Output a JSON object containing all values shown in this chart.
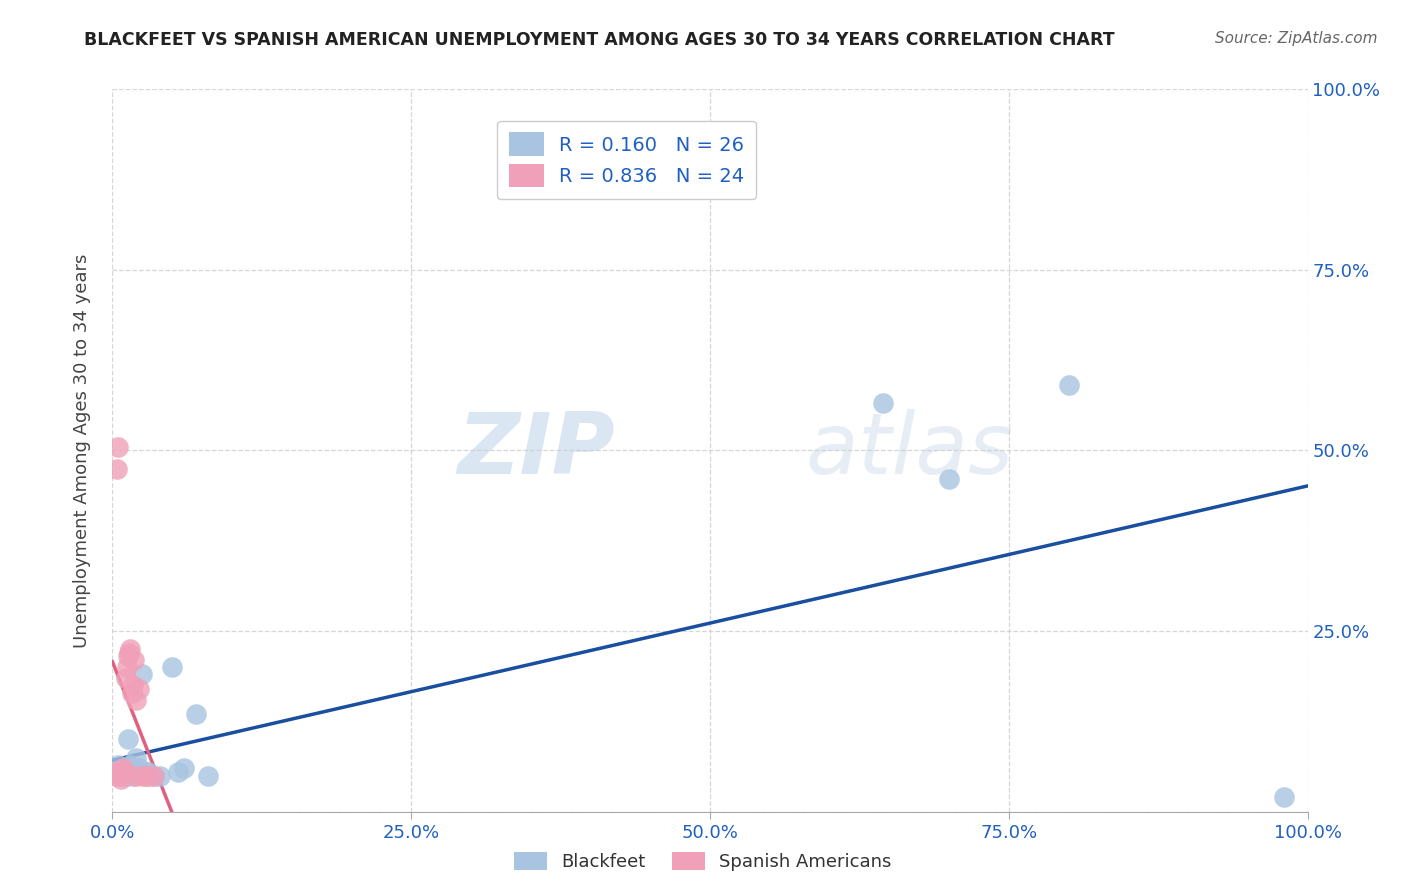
{
  "title": "BLACKFEET VS SPANISH AMERICAN UNEMPLOYMENT AMONG AGES 30 TO 34 YEARS CORRELATION CHART",
  "source": "Source: ZipAtlas.com",
  "ylabel_label": "Unemployment Among Ages 30 to 34 years",
  "blackfeet_color": "#a8c4e0",
  "spanish_color": "#f0a0b8",
  "blue_line_color": "#1a4fa0",
  "pink_line_color": "#e06080",
  "R_blackfeet": 0.16,
  "N_blackfeet": 26,
  "R_spanish": 0.836,
  "N_spanish": 24,
  "blackfeet_x": [
    0.003,
    0.005,
    0.007,
    0.008,
    0.01,
    0.012,
    0.013,
    0.015,
    0.017,
    0.018,
    0.02,
    0.022,
    0.025,
    0.028,
    0.03,
    0.035,
    0.04,
    0.05,
    0.055,
    0.06,
    0.07,
    0.08,
    0.645,
    0.7,
    0.8,
    0.98
  ],
  "blackfeet_y": [
    0.055,
    0.065,
    0.05,
    0.055,
    0.06,
    0.05,
    0.1,
    0.065,
    0.055,
    0.05,
    0.075,
    0.06,
    0.19,
    0.055,
    0.055,
    0.05,
    0.05,
    0.2,
    0.055,
    0.06,
    0.135,
    0.05,
    0.565,
    0.46,
    0.59,
    0.02
  ],
  "spanish_x": [
    0.002,
    0.003,
    0.004,
    0.005,
    0.006,
    0.007,
    0.008,
    0.009,
    0.01,
    0.011,
    0.012,
    0.013,
    0.014,
    0.015,
    0.016,
    0.017,
    0.018,
    0.019,
    0.02,
    0.022,
    0.025,
    0.028,
    0.03,
    0.035
  ],
  "spanish_y": [
    0.05,
    0.055,
    0.475,
    0.505,
    0.055,
    0.045,
    0.05,
    0.06,
    0.055,
    0.185,
    0.2,
    0.215,
    0.22,
    0.225,
    0.165,
    0.175,
    0.21,
    0.05,
    0.155,
    0.17,
    0.05,
    0.05,
    0.05,
    0.05
  ],
  "xlim": [
    0,
    1.0
  ],
  "ylim": [
    0,
    1.0
  ],
  "xticks": [
    0.0,
    0.25,
    0.5,
    0.75,
    1.0
  ],
  "yticks": [
    0.0,
    0.25,
    0.5,
    0.75,
    1.0
  ],
  "xtick_labels": [
    "0.0%",
    "25.0%",
    "50.0%",
    "75.0%",
    "100.0%"
  ],
  "right_ytick_labels": [
    "",
    "25.0%",
    "50.0%",
    "75.0%",
    "100.0%"
  ],
  "watermark_zip": "ZIP",
  "watermark_atlas": "atlas",
  "background_color": "#ffffff",
  "grid_color": "#cccccc"
}
